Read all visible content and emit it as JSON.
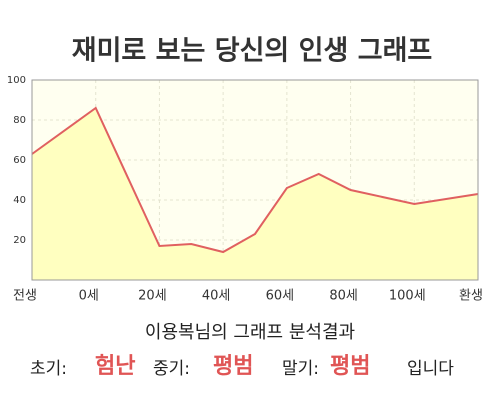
{
  "chart_data": {
    "type": "area",
    "title": "재미로 보는 당신의 인생 그래프",
    "x": [
      -20,
      0,
      20,
      30,
      40,
      50,
      60,
      70,
      80,
      100,
      120
    ],
    "values": [
      63,
      86,
      17,
      18,
      14,
      23,
      46,
      53,
      45,
      38,
      43
    ],
    "color": "#e06060",
    "fill_color": "#ffffc0",
    "xlim": [
      -20,
      120
    ],
    "xticks": [
      {
        "value": -20,
        "label": "전생"
      },
      {
        "value": 0,
        "label": "0세"
      },
      {
        "value": 20,
        "label": "20세"
      },
      {
        "value": 40,
        "label": "40세"
      },
      {
        "value": 60,
        "label": "60세"
      },
      {
        "value": 80,
        "label": "80세"
      },
      {
        "value": 100,
        "label": "100세"
      },
      {
        "value": 120,
        "label": "환생"
      }
    ],
    "ylim": [
      0,
      100
    ],
    "yticks": [
      20,
      40,
      60,
      80,
      100
    ],
    "grid": true
  },
  "result": {
    "heading": "이용복님의 그래프 분석결과",
    "items": [
      {
        "label": "초기:",
        "value": "험난"
      },
      {
        "label": "중기:",
        "value": "평범"
      },
      {
        "label": "말기:",
        "value": "평범"
      }
    ],
    "suffix": "입니다"
  }
}
